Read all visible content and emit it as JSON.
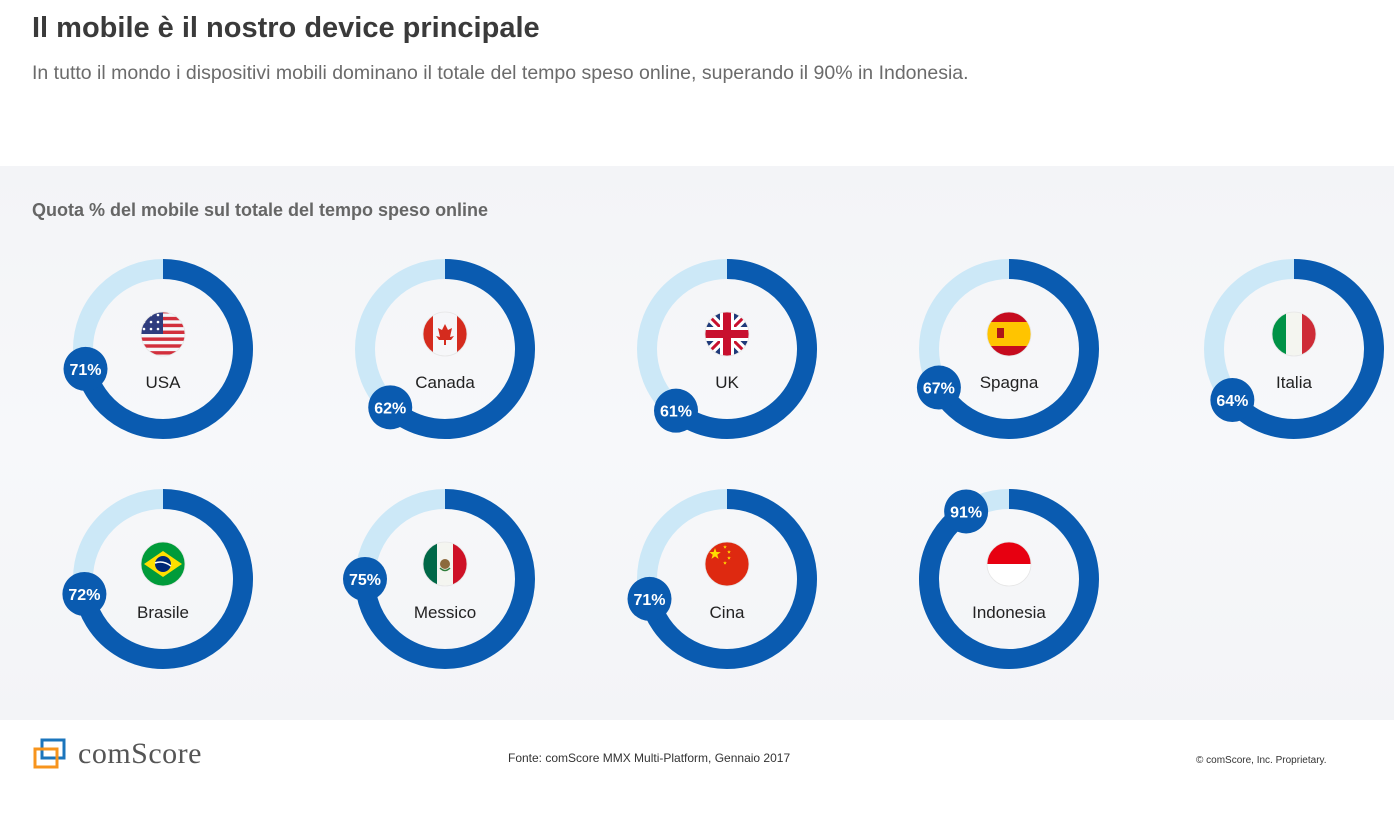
{
  "header": {
    "title": "Il mobile è il nostro device principale",
    "subtitle": "In tutto il mondo i dispositivi mobili dominano il totale del tempo speso online, superando il 90% in Indonesia."
  },
  "chart_data": {
    "type": "donut",
    "title": "Quota % del mobile sul totale del tempo speso online",
    "unit": "%",
    "colors": {
      "filled": "#0a5bb0",
      "remaining": "#cce8f7",
      "label_text": "#ffffff"
    },
    "items": [
      {
        "country": "USA",
        "value": 71,
        "label": "71%",
        "flag": "usa-flag-icon"
      },
      {
        "country": "Canada",
        "value": 62,
        "label": "62%",
        "flag": "canada-flag-icon"
      },
      {
        "country": "UK",
        "value": 61,
        "label": "61%",
        "flag": "uk-flag-icon"
      },
      {
        "country": "Spagna",
        "value": 67,
        "label": "67%",
        "flag": "spain-flag-icon"
      },
      {
        "country": "Italia",
        "value": 64,
        "label": "64%",
        "flag": "italy-flag-icon"
      },
      {
        "country": "Brasile",
        "value": 72,
        "label": "72%",
        "flag": "brazil-flag-icon"
      },
      {
        "country": "Messico",
        "value": 75,
        "label": "75%",
        "flag": "mexico-flag-icon"
      },
      {
        "country": "Cina",
        "value": 71,
        "label": "71%",
        "flag": "china-flag-icon"
      },
      {
        "country": "Indonesia",
        "value": 91,
        "label": "91%",
        "flag": "indonesia-flag-icon"
      }
    ]
  },
  "footer": {
    "logo_text": "comScore",
    "source": "Fonte: comScore MMX Multi-Platform, Gennaio 2017",
    "copyright": "© comScore, Inc. Proprietary."
  }
}
